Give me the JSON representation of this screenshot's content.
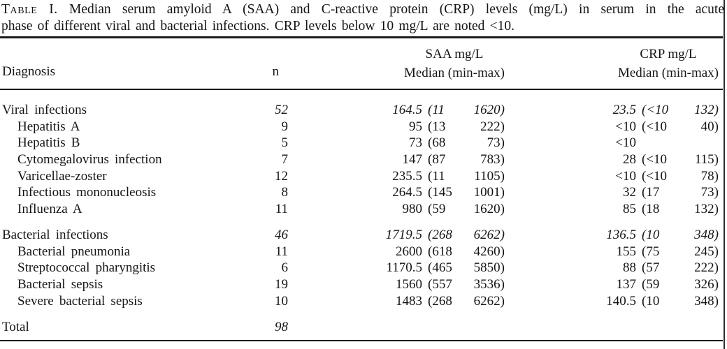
{
  "caption": {
    "label": "Table I.",
    "line1": "Median serum amyloid A (SAA) and C-reactive protein (CRP) levels (mg/L) in serum in the acute",
    "line2": "phase of different viral and bacterial infections. CRP levels below 10 mg/L are noted <10."
  },
  "header": {
    "diagnosis": "Diagnosis",
    "n": "n",
    "saa_line1": "SAA mg/L",
    "saa_line2": "Median (min-max)",
    "crp_line1": "CRP mg/L",
    "crp_line2": "Median (min-max)"
  },
  "rows": [
    {
      "label": "Viral infections",
      "n": "52",
      "saa_median": "164.5",
      "saa_min": "(11",
      "saa_max": "1620)",
      "crp_median": "23.5",
      "crp_min": "(<10",
      "crp_max": "132)"
    },
    {
      "label": "Hepatitis A",
      "n": "9",
      "saa_median": "95",
      "saa_min": "(13",
      "saa_max": "222)",
      "crp_median": "<10",
      "crp_min": "(<10",
      "crp_max": "40)"
    },
    {
      "label": "Hepatitis B",
      "n": "5",
      "saa_median": "73",
      "saa_min": "(68",
      "saa_max": "73)",
      "crp_median": "<10",
      "crp_min": "",
      "crp_max": ""
    },
    {
      "label": "Cytomegalovirus infection",
      "n": "7",
      "saa_median": "147",
      "saa_min": "(87",
      "saa_max": "783)",
      "crp_median": "28",
      "crp_min": "(<10",
      "crp_max": "115)"
    },
    {
      "label": "Varicellae-zoster",
      "n": "12",
      "saa_median": "235.5",
      "saa_min": "(11",
      "saa_max": "1105)",
      "crp_median": "<10",
      "crp_min": "(<10",
      "crp_max": "78)"
    },
    {
      "label": "Infectious mononucleosis",
      "n": "8",
      "saa_median": "264.5",
      "saa_min": "(145",
      "saa_max": "1001)",
      "crp_median": "32",
      "crp_min": "(17",
      "crp_max": "73)"
    },
    {
      "label": "Influenza A",
      "n": "11",
      "saa_median": "980",
      "saa_min": "(59",
      "saa_max": "1620)",
      "crp_median": "85",
      "crp_min": "(18",
      "crp_max": "132)"
    },
    {
      "label": "Bacterial infections",
      "n": "46",
      "saa_median": "1719.5",
      "saa_min": "(268",
      "saa_max": "6262)",
      "crp_median": "136.5",
      "crp_min": "(10",
      "crp_max": "348)"
    },
    {
      "label": "Bacterial pneumonia",
      "n": "11",
      "saa_median": "2600",
      "saa_min": "(618",
      "saa_max": "4260)",
      "crp_median": "155",
      "crp_min": "(75",
      "crp_max": "245)"
    },
    {
      "label": "Streptococcal pharyngitis",
      "n": "6",
      "saa_median": "1170.5",
      "saa_min": "(465",
      "saa_max": "5850)",
      "crp_median": "88",
      "crp_min": "(57",
      "crp_max": "222)"
    },
    {
      "label": "Bacterial sepsis",
      "n": "19",
      "saa_median": "1560",
      "saa_min": "(557",
      "saa_max": "3536)",
      "crp_median": "137",
      "crp_min": "(59",
      "crp_max": "326)"
    },
    {
      "label": "Severe bacterial sepsis",
      "n": "10",
      "saa_median": "1483",
      "saa_min": "(268",
      "saa_max": "6262)",
      "crp_median": "140.5",
      "crp_min": "(10",
      "crp_max": "348)"
    },
    {
      "label": "Total",
      "n": "98",
      "saa_median": "",
      "saa_min": "",
      "saa_max": "",
      "crp_median": "",
      "crp_min": "",
      "crp_max": ""
    }
  ]
}
